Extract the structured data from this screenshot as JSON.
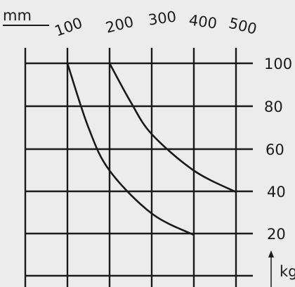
{
  "chart_data": {
    "type": "line",
    "x_unit": "mm",
    "y_unit": "kg",
    "x_ticks": [
      "100",
      "200",
      "300",
      "400",
      "500"
    ],
    "y_ticks": [
      "100",
      "80",
      "60",
      "40",
      "20"
    ],
    "series": [
      {
        "x": [
          100,
          150,
          200,
          300,
          400
        ],
        "y": [
          100,
          70,
          50,
          30,
          20
        ]
      },
      {
        "x": [
          200,
          250,
          300,
          400,
          500
        ],
        "y": [
          100,
          82,
          67,
          50,
          40
        ]
      }
    ]
  }
}
